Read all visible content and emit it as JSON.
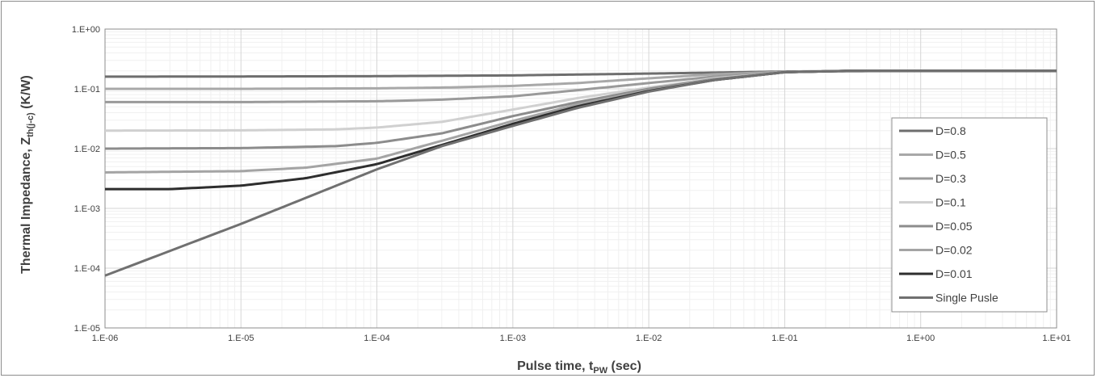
{
  "chart_data": {
    "type": "line",
    "x_scale": "log",
    "y_scale": "log",
    "xlim": [
      1e-06,
      10
    ],
    "ylim": [
      1e-05,
      1
    ],
    "x_ticks": [
      "1.E-06",
      "1.E-05",
      "1.E-04",
      "1.E-03",
      "1.E-02",
      "1.E-01",
      "1.E+00",
      "1.E+01"
    ],
    "y_ticks": [
      "1.E+00",
      "1.E-01",
      "1.E-02",
      "1.E-03",
      "1.E-04",
      "1.E-05"
    ],
    "xlabel_main": "Pulse time, t",
    "xlabel_sub": "PW",
    "xlabel_tail": " (sec)",
    "ylabel_main": "Thermal Impedance, Z",
    "ylabel_sub": "th(j-c)",
    "ylabel_tail": " (K/W)",
    "grid": true,
    "legend_position": "right",
    "series": [
      {
        "name": "D=0.8",
        "color": "#6e6e6e",
        "x": [
          1e-06,
          1e-05,
          0.0001,
          0.001,
          0.01,
          0.1,
          1,
          10
        ],
        "y": [
          0.16,
          0.161,
          0.163,
          0.168,
          0.18,
          0.195,
          0.2,
          0.2
        ]
      },
      {
        "name": "D=0.5",
        "color": "#a8a8a8",
        "x": [
          1e-06,
          1e-05,
          0.0001,
          0.0003,
          0.001,
          0.003,
          0.01,
          0.03,
          0.1,
          0.3,
          1,
          10
        ],
        "y": [
          0.1,
          0.1,
          0.102,
          0.105,
          0.112,
          0.125,
          0.15,
          0.175,
          0.193,
          0.2,
          0.2,
          0.2
        ]
      },
      {
        "name": "D=0.3",
        "color": "#9a9a9a",
        "x": [
          1e-06,
          1e-05,
          0.0001,
          0.0003,
          0.001,
          0.003,
          0.01,
          0.03,
          0.1,
          0.3,
          1,
          10
        ],
        "y": [
          0.06,
          0.06,
          0.062,
          0.066,
          0.075,
          0.095,
          0.125,
          0.16,
          0.19,
          0.2,
          0.2,
          0.2
        ]
      },
      {
        "name": "D=0.1",
        "color": "#d0d0d0",
        "x": [
          1e-06,
          1e-05,
          5e-05,
          0.0001,
          0.0003,
          0.001,
          0.003,
          0.01,
          0.03,
          0.1,
          0.3,
          1,
          10
        ],
        "y": [
          0.02,
          0.0202,
          0.021,
          0.0225,
          0.028,
          0.045,
          0.07,
          0.105,
          0.15,
          0.19,
          0.2,
          0.2,
          0.2
        ]
      },
      {
        "name": "D=0.05",
        "color": "#8c8c8c",
        "x": [
          1e-06,
          1e-05,
          5e-05,
          0.0001,
          0.0003,
          0.001,
          0.003,
          0.01,
          0.03,
          0.1,
          0.3,
          1,
          10
        ],
        "y": [
          0.01,
          0.0102,
          0.011,
          0.0125,
          0.018,
          0.035,
          0.06,
          0.1,
          0.145,
          0.19,
          0.2,
          0.2,
          0.2
        ]
      },
      {
        "name": "D=0.02",
        "color": "#a4a4a4",
        "x": [
          1e-06,
          1e-05,
          3e-05,
          0.0001,
          0.0003,
          0.001,
          0.003,
          0.01,
          0.03,
          0.1,
          0.3,
          1,
          10
        ],
        "y": [
          0.004,
          0.0042,
          0.0048,
          0.0068,
          0.0135,
          0.029,
          0.055,
          0.095,
          0.14,
          0.19,
          0.2,
          0.2,
          0.2
        ]
      },
      {
        "name": "D=0.01",
        "color": "#2e2e2e",
        "x": [
          1e-06,
          3e-06,
          1e-05,
          3e-05,
          0.0001,
          0.0003,
          0.001,
          0.003,
          0.01,
          0.03,
          0.1,
          0.3,
          1,
          10
        ],
        "y": [
          0.0021,
          0.0021,
          0.0024,
          0.0032,
          0.0055,
          0.0115,
          0.026,
          0.051,
          0.092,
          0.14,
          0.19,
          0.2,
          0.2,
          0.2
        ]
      },
      {
        "name": "Single Pusle",
        "color": "#707070",
        "x": [
          1e-06,
          1e-05,
          0.0001,
          0.0003,
          0.001,
          0.003,
          0.01,
          0.03,
          0.1,
          0.3,
          1,
          10
        ],
        "y": [
          7.5e-05,
          0.00055,
          0.0045,
          0.011,
          0.024,
          0.048,
          0.09,
          0.14,
          0.19,
          0.2,
          0.2,
          0.2
        ]
      }
    ]
  }
}
